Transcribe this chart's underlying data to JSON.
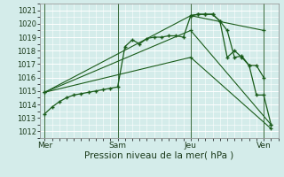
{
  "bg_color": "#d4ecea",
  "plot_bg_color": "#d4ecea",
  "grid_color": "#ffffff",
  "line_color": "#1a5c1a",
  "xlabel": "Pression niveau de la mer( hPa )",
  "ylim": [
    1011.5,
    1021.5
  ],
  "yticks": [
    1012,
    1013,
    1014,
    1015,
    1016,
    1017,
    1018,
    1019,
    1020,
    1021
  ],
  "xtick_labels": [
    "Mer",
    "Sam",
    "Jeu",
    "Ven"
  ],
  "xtick_positions": [
    0,
    30,
    60,
    90
  ],
  "vline_positions": [
    0,
    30,
    60,
    90
  ],
  "xlim": [
    -2,
    96
  ],
  "series1_x": [
    0,
    3,
    6,
    9,
    12,
    15,
    18,
    21,
    24,
    27,
    30,
    33,
    36,
    39,
    42,
    45,
    48,
    51,
    54,
    57,
    60,
    63,
    66,
    69,
    72,
    75,
    78,
    81,
    84,
    87,
    90
  ],
  "series1_y": [
    1013.3,
    1013.8,
    1014.2,
    1014.5,
    1014.7,
    1014.8,
    1014.9,
    1015.0,
    1015.1,
    1015.2,
    1015.3,
    1018.3,
    1018.8,
    1018.5,
    1018.9,
    1019.0,
    1019.0,
    1019.1,
    1019.1,
    1019.0,
    1020.6,
    1020.7,
    1020.7,
    1020.7,
    1020.2,
    1017.5,
    1018.0,
    1017.5,
    1016.9,
    1016.9,
    1016.0
  ],
  "series2_x": [
    0,
    60,
    90
  ],
  "series2_y": [
    1014.9,
    1020.6,
    1019.5
  ],
  "series3_x": [
    0,
    60,
    93
  ],
  "series3_y": [
    1014.9,
    1019.5,
    1012.5
  ],
  "series4_x": [
    0,
    60,
    93
  ],
  "series4_y": [
    1014.9,
    1017.5,
    1012.2
  ],
  "series5_x": [
    60,
    63,
    66,
    69,
    72,
    75,
    78,
    81,
    84,
    87,
    90,
    93
  ],
  "series5_y": [
    1020.6,
    1020.7,
    1020.7,
    1020.7,
    1020.2,
    1019.5,
    1017.5,
    1017.6,
    1016.9,
    1014.7,
    1014.7,
    1012.5
  ]
}
